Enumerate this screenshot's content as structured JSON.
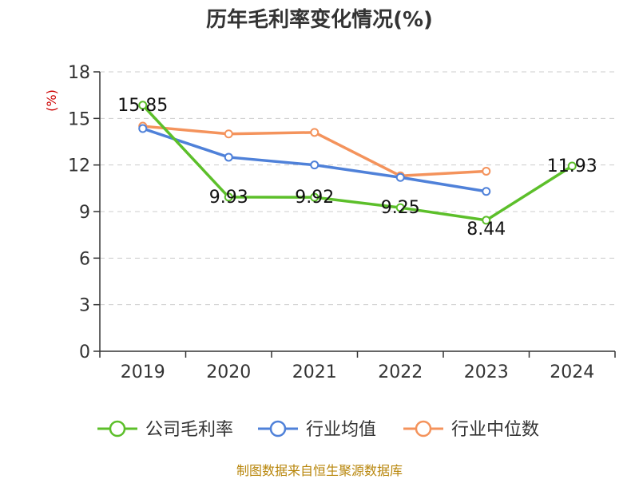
{
  "chart_data": {
    "type": "line",
    "title": "历年毛利率变化情况(%)",
    "ylabel": "(%)",
    "xlabel": "",
    "categories": [
      "2019",
      "2020",
      "2021",
      "2022",
      "2023",
      "2024"
    ],
    "ylim": [
      0,
      18
    ],
    "yticks": [
      "0",
      "3",
      "6",
      "9",
      "12",
      "15",
      "18"
    ],
    "grid": "horizontal dashed",
    "legend_position": "bottom",
    "series": [
      {
        "name": "公司毛利率",
        "color": "#5cbf2a",
        "values": [
          15.85,
          9.93,
          9.92,
          9.25,
          8.44,
          11.93
        ],
        "labels": [
          "15.85",
          "9.93",
          "9.92",
          "9.25",
          "8.44",
          "11.93"
        ]
      },
      {
        "name": "行业均值",
        "color": "#4f81d9",
        "values": [
          14.35,
          12.5,
          12.0,
          11.2,
          10.3,
          null
        ]
      },
      {
        "name": "行业中位数",
        "color": "#f4935c",
        "values": [
          14.5,
          14.0,
          14.1,
          11.3,
          11.6,
          null
        ]
      }
    ],
    "source": "制图数据来自恒生聚源数据库"
  }
}
